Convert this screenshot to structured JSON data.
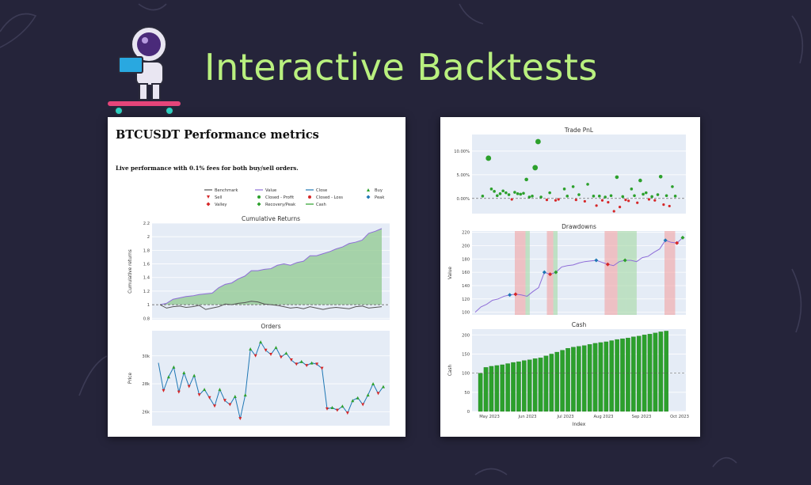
{
  "headline": "Interactive Backtests",
  "colors": {
    "background": "#25243a",
    "headline": "#b9f07f",
    "plot_bg": "#e5ecf6",
    "value_line": "#8e6dd8",
    "benchmark_line": "#555555",
    "close_line": "#1f77b4",
    "profit_marker": "#2ca02c",
    "loss_marker": "#d62728",
    "fill_green": "#8fca8f",
    "cash_bar": "#2ca02c"
  },
  "left_report": {
    "title": "BTCUSDT Performance metrics",
    "subtitle": "Live performance with 0.1% fees for both buy/sell orders.",
    "legend": [
      {
        "label": "Benchmark",
        "kind": "line",
        "color": "#555555"
      },
      {
        "label": "Value",
        "kind": "line",
        "color": "#8e6dd8"
      },
      {
        "label": "Close",
        "kind": "line",
        "color": "#1f77b4"
      },
      {
        "label": "Buy",
        "kind": "triangle-up",
        "color": "#2ca02c"
      },
      {
        "label": "Sell",
        "kind": "triangle-down",
        "color": "#d62728"
      },
      {
        "label": "Closed - Profit",
        "kind": "circle",
        "color": "#2ca02c"
      },
      {
        "label": "Closed - Loss",
        "kind": "circle",
        "color": "#d62728"
      },
      {
        "label": "Peak",
        "kind": "diamond",
        "color": "#1f77b4"
      },
      {
        "label": "Valley",
        "kind": "diamond",
        "color": "#d62728"
      },
      {
        "label": "Recovery/Peak",
        "kind": "diamond",
        "color": "#2ca02c"
      },
      {
        "label": "Cash",
        "kind": "line",
        "color": "#2ca02c"
      }
    ]
  },
  "chart_data": [
    {
      "type": "area",
      "title": "Cumulative Returns",
      "xlabel": "",
      "ylabel": "Cumulative returns",
      "ylim": [
        0.78,
        2.2
      ],
      "yticks": [
        0.8,
        1,
        1.2,
        1.4,
        1.6,
        1.8,
        2,
        2.2
      ],
      "baseline": 1,
      "grid": true,
      "series": [
        {
          "name": "Value",
          "values": [
            1.0,
            1.02,
            1.08,
            1.1,
            1.12,
            1.13,
            1.15,
            1.16,
            1.17,
            1.25,
            1.3,
            1.32,
            1.38,
            1.42,
            1.5,
            1.5,
            1.52,
            1.53,
            1.58,
            1.6,
            1.58,
            1.62,
            1.64,
            1.72,
            1.72,
            1.75,
            1.78,
            1.82,
            1.85,
            1.9,
            1.92,
            1.95,
            2.05,
            2.08,
            2.12
          ]
        },
        {
          "name": "Benchmark",
          "values": [
            1.0,
            0.95,
            0.97,
            0.98,
            0.96,
            0.97,
            0.99,
            0.93,
            0.95,
            0.97,
            1.01,
            1.0,
            1.02,
            1.03,
            1.05,
            1.04,
            1.01,
            1.0,
            0.99,
            0.97,
            0.95,
            0.96,
            0.94,
            0.97,
            0.95,
            0.93,
            0.95,
            0.96,
            0.95,
            0.94,
            0.97,
            0.98,
            0.95,
            0.96,
            0.97
          ]
        }
      ]
    },
    {
      "type": "line",
      "title": "Orders",
      "xlabel": "",
      "ylabel": "Price",
      "ylim": [
        25000,
        31800
      ],
      "yticks": [
        {
          "value": 26000,
          "label": "26k"
        },
        {
          "value": 28000,
          "label": "28k"
        },
        {
          "value": 30000,
          "label": "30k"
        }
      ],
      "grid": true,
      "series": [
        {
          "name": "Close",
          "values": [
            29500,
            27500,
            28500,
            29200,
            27400,
            28800,
            27800,
            28600,
            27200,
            27600,
            27000,
            26400,
            27600,
            26800,
            26500,
            27100,
            25500,
            27200,
            30500,
            30000,
            31000,
            30400,
            30100,
            30600,
            29900,
            30200,
            29700,
            29400,
            29600,
            29300,
            29500,
            29400,
            29100,
            26200,
            26300,
            26100,
            26400,
            25900,
            26800,
            27000,
            26500,
            27200,
            28000,
            27300,
            27800
          ]
        }
      ]
    },
    {
      "type": "scatter",
      "title": "Trade PnL",
      "xlabel": "",
      "ylabel": "",
      "ylim": [
        -3.2,
        13.5
      ],
      "yticks": [
        {
          "value": 0,
          "label": "0.00%"
        },
        {
          "value": 5,
          "label": "5.00%"
        },
        {
          "value": 10,
          "label": "10.00%"
        }
      ],
      "grid": true,
      "series": [
        {
          "name": "Closed - Profit",
          "x": [
            2,
            4,
            5,
            6,
            7,
            8,
            9,
            10,
            11,
            13,
            14,
            15,
            16,
            17,
            18,
            19,
            20,
            21,
            22,
            25,
            30,
            31,
            33,
            35,
            38,
            40,
            42,
            44,
            46,
            48,
            50,
            53,
            54,
            56,
            57,
            58,
            60,
            62,
            63,
            65,
            67,
            68
          ],
          "y": [
            0.5,
            8.5,
            2,
            1.5,
            0.6,
            1,
            1.6,
            1.2,
            0.8,
            1.3,
            1,
            0.9,
            1.1,
            4,
            0.3,
            0.5,
            6.5,
            12,
            0.3,
            1.2,
            2,
            0.5,
            2.5,
            0.8,
            3,
            0.5,
            0.5,
            0.3,
            0.6,
            4.5,
            0.4,
            2,
            0.6,
            3.8,
            0.9,
            1.2,
            0.4,
            0.8,
            4.6,
            0.6,
            2.5,
            0.5
          ]
        },
        {
          "name": "Closed - Loss",
          "x": [
            12,
            24,
            27,
            28,
            34,
            37,
            41,
            43,
            45,
            47,
            49,
            51,
            52,
            55,
            59,
            61,
            64,
            66
          ],
          "y": [
            -0.2,
            -0.3,
            -0.4,
            -0.2,
            -0.3,
            -0.6,
            -1.5,
            -0.4,
            -0.8,
            -2.7,
            -1.8,
            -0.3,
            -0.5,
            -0.9,
            -0.2,
            -0.4,
            -1.3,
            -1.6
          ]
        }
      ]
    },
    {
      "type": "line",
      "title": "Drawdowns",
      "xlabel": "",
      "ylabel": "Value",
      "ylim": [
        96,
        222
      ],
      "yticks": [
        100,
        120,
        140,
        160,
        180,
        200,
        220
      ],
      "grid": true,
      "series": [
        {
          "name": "Value",
          "values": [
            100,
            108,
            112,
            118,
            120,
            124,
            126,
            127,
            126,
            124,
            131,
            137,
            160,
            157,
            160,
            168,
            170,
            171,
            174,
            176,
            177,
            178,
            175,
            172,
            170,
            176,
            178,
            178,
            176,
            182,
            184,
            190,
            195,
            208,
            205,
            204,
            212
          ]
        }
      ]
    },
    {
      "type": "bar",
      "title": "Cash",
      "xlabel": "Index",
      "ylabel": "Cash",
      "ylim": [
        0,
        215
      ],
      "yticks": [
        0,
        50,
        100,
        150,
        200
      ],
      "reference_line": 100,
      "grid": true,
      "x_tick_labels": [
        "May 2023",
        "Jun 2023",
        "Jul 2023",
        "Aug 2023",
        "Sep 2023",
        "Oct 2023"
      ],
      "series": [
        {
          "name": "Cash",
          "values": [
            100,
            115,
            118,
            120,
            122,
            125,
            128,
            130,
            133,
            135,
            138,
            140,
            145,
            150,
            155,
            160,
            165,
            168,
            170,
            172,
            175,
            178,
            180,
            182,
            185,
            188,
            190,
            192,
            195,
            197,
            200,
            202,
            205,
            208,
            210
          ]
        }
      ]
    }
  ]
}
